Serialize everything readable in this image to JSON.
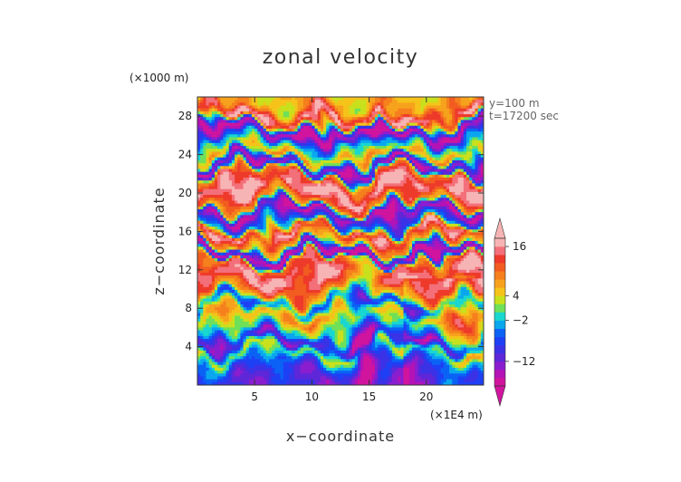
{
  "chart_data": {
    "type": "heatmap",
    "title": "zonal velocity",
    "xlabel": "x−coordinate",
    "ylabel": "z−coordinate",
    "x_unit": "(×1E4 m)",
    "y_unit": "(×1000 m)",
    "xlim": [
      0,
      25
    ],
    "ylim": [
      0,
      30
    ],
    "x_ticks": [
      5,
      10,
      15,
      20
    ],
    "x_tick_labels": [
      "5",
      "10",
      "15",
      "20"
    ],
    "y_ticks": [
      4,
      8,
      12,
      16,
      20,
      24,
      28
    ],
    "y_tick_labels": [
      "4",
      "8",
      "12",
      "16",
      "20",
      "24",
      "28"
    ],
    "annotations": [
      "y=100 m",
      "t=17200 sec"
    ],
    "colorbar": {
      "ticks": [
        16,
        4,
        -2,
        -12
      ],
      "tick_labels": [
        "16",
        "4",
        "−2",
        "−12"
      ],
      "levels": [
        -20,
        -16,
        -14,
        -12,
        -10,
        -8,
        -6,
        -4,
        -2,
        0,
        2,
        4,
        6,
        8,
        10,
        12,
        14,
        16,
        18,
        20
      ],
      "colors": [
        "#d1149e",
        "#b413b6",
        "#8a1ecf",
        "#5e27d8",
        "#3b32e6",
        "#1e40f5",
        "#0b62f5",
        "#0aa7ee",
        "#19d7d0",
        "#6ee05a",
        "#c9e11d",
        "#f5c31a",
        "#f7a21d",
        "#f5801d",
        "#f25c20",
        "#ee3a2a",
        "#f3707a",
        "#f7b4b4"
      ],
      "over_color": "#f7b4b4",
      "under_color": "#d1149e"
    },
    "bands": [
      {
        "z": 1.0,
        "u": -10
      },
      {
        "z": 2.2,
        "u": -6
      },
      {
        "z": 3.4,
        "u": 2
      },
      {
        "z": 4.5,
        "u": -11
      },
      {
        "z": 5.8,
        "u": 0
      },
      {
        "z": 7.2,
        "u": 7
      },
      {
        "z": 8.5,
        "u": -4
      },
      {
        "z": 9.8,
        "u": 10
      },
      {
        "z": 11.2,
        "u": 16
      },
      {
        "z": 12.6,
        "u": 12
      },
      {
        "z": 13.6,
        "u": -17
      },
      {
        "z": 14.8,
        "u": 8
      },
      {
        "z": 15.8,
        "u": 14
      },
      {
        "z": 16.9,
        "u": -6
      },
      {
        "z": 18.0,
        "u": -15
      },
      {
        "z": 19.2,
        "u": 10
      },
      {
        "z": 20.5,
        "u": 17
      },
      {
        "z": 21.8,
        "u": 12
      },
      {
        "z": 23.0,
        "u": -14
      },
      {
        "z": 24.2,
        "u": 6
      },
      {
        "z": 25.2,
        "u": -2
      },
      {
        "z": 26.5,
        "u": -17
      },
      {
        "z": 28.0,
        "u": 15
      },
      {
        "z": 29.4,
        "u": 6
      }
    ]
  }
}
